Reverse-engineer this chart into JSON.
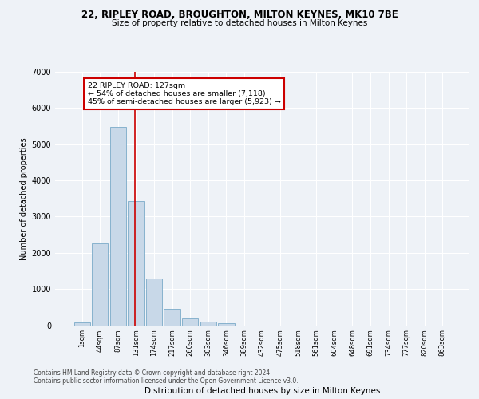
{
  "title1": "22, RIPLEY ROAD, BROUGHTON, MILTON KEYNES, MK10 7BE",
  "title2": "Size of property relative to detached houses in Milton Keynes",
  "xlabel": "Distribution of detached houses by size in Milton Keynes",
  "ylabel": "Number of detached properties",
  "footer1": "Contains HM Land Registry data © Crown copyright and database right 2024.",
  "footer2": "Contains public sector information licensed under the Open Government Licence v3.0.",
  "bar_color": "#c8d8e8",
  "bar_edge_color": "#7aaac8",
  "vline_color": "#cc0000",
  "annotation_text": "22 RIPLEY ROAD: 127sqm\n← 54% of detached houses are smaller (7,118)\n45% of semi-detached houses are larger (5,923) →",
  "annotation_box_color": "#ffffff",
  "annotation_box_edge": "#cc0000",
  "categories": [
    "1sqm",
    "44sqm",
    "87sqm",
    "131sqm",
    "174sqm",
    "217sqm",
    "260sqm",
    "303sqm",
    "346sqm",
    "389sqm",
    "432sqm",
    "475sqm",
    "518sqm",
    "561sqm",
    "604sqm",
    "648sqm",
    "691sqm",
    "734sqm",
    "777sqm",
    "820sqm",
    "863sqm"
  ],
  "values": [
    70,
    2270,
    5470,
    3420,
    1290,
    460,
    190,
    100,
    60,
    0,
    0,
    0,
    0,
    0,
    0,
    0,
    0,
    0,
    0,
    0,
    0
  ],
  "ylim": [
    0,
    7000
  ],
  "yticks": [
    0,
    1000,
    2000,
    3000,
    4000,
    5000,
    6000,
    7000
  ],
  "background_color": "#eef2f7",
  "grid_color": "#ffffff",
  "vline_pos": 2.93
}
